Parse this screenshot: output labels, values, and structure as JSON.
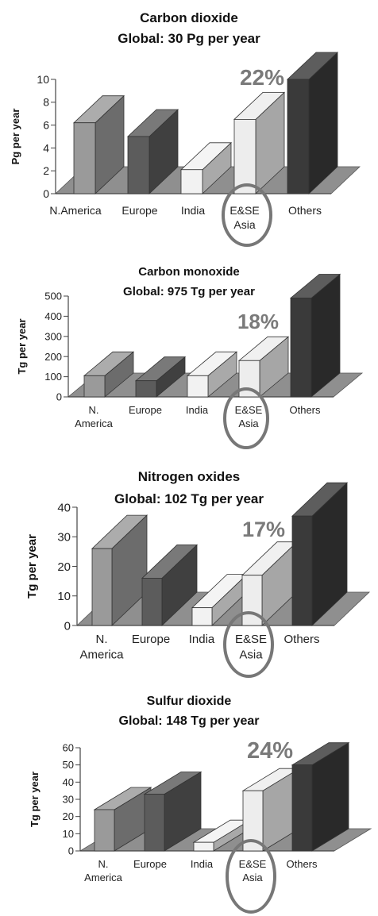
{
  "chart_data": [
    {
      "type": "bar",
      "title": "Carbon dioxide",
      "subtitle": "Global: 30 Pg per year",
      "ylabel": "Pg per year",
      "xlabel": "",
      "ylim": [
        0,
        10
      ],
      "yticks": [
        "0",
        "2",
        "4",
        "6",
        "8",
        "10"
      ],
      "categories": [
        "N.America",
        "Europe",
        "India",
        "E&SE Asia",
        "Others"
      ],
      "category_lines": [
        [
          "N.America"
        ],
        [
          "Europe"
        ],
        [
          "India"
        ],
        [
          "E&SE",
          "Asia"
        ],
        [
          "Others"
        ]
      ],
      "values": [
        6.2,
        5.0,
        2.1,
        6.5,
        10.0
      ],
      "highlight": "22%",
      "colors": [
        "#9a9a9a",
        "#5c5c5c",
        "#f2f2f2",
        "#ededed",
        "#3a3a3a"
      ]
    },
    {
      "type": "bar",
      "title": "Carbon monoxide",
      "subtitle": "Global: 975 Tg per year",
      "ylabel": "Tg per year",
      "xlabel": "",
      "ylim": [
        0,
        500
      ],
      "yticks": [
        "0",
        "100",
        "200",
        "300",
        "400",
        "500"
      ],
      "categories": [
        "N. America",
        "Europe",
        "India",
        "E&SE Asia",
        "Others"
      ],
      "category_lines": [
        [
          "N.",
          "America"
        ],
        [
          "Europe"
        ],
        [
          "India"
        ],
        [
          "E&SE",
          "Asia"
        ],
        [
          "Others"
        ]
      ],
      "values": [
        105,
        80,
        105,
        180,
        490
      ],
      "highlight": "18%",
      "colors": [
        "#9a9a9a",
        "#5c5c5c",
        "#f2f2f2",
        "#ededed",
        "#3a3a3a"
      ]
    },
    {
      "type": "bar",
      "title": "Nitrogen oxides",
      "subtitle": "Global: 102 Tg per year",
      "ylabel": "Tg per year",
      "xlabel": "",
      "ylim": [
        0,
        40
      ],
      "yticks": [
        "0",
        "10",
        "20",
        "30",
        "40"
      ],
      "categories": [
        "N. America",
        "Europe",
        "India",
        "E&SE Asia",
        "Others"
      ],
      "category_lines": [
        [
          "N.",
          "America"
        ],
        [
          "Europe"
        ],
        [
          "India"
        ],
        [
          "E&SE",
          "Asia"
        ],
        [
          "Others"
        ]
      ],
      "values": [
        26,
        16,
        6,
        17,
        37
      ],
      "highlight": "17%",
      "colors": [
        "#9a9a9a",
        "#5c5c5c",
        "#f2f2f2",
        "#ededed",
        "#3a3a3a"
      ]
    },
    {
      "type": "bar",
      "title": "Sulfur dioxide",
      "subtitle": "Global: 148 Tg per year",
      "ylabel": "Tg per year",
      "xlabel": "",
      "ylim": [
        0,
        60
      ],
      "yticks": [
        "0",
        "10",
        "20",
        "30",
        "40",
        "50",
        "60"
      ],
      "categories": [
        "N. America",
        "Europe",
        "India",
        "E&SE Asia",
        "Others"
      ],
      "category_lines": [
        [
          "N.",
          "America"
        ],
        [
          "Europe"
        ],
        [
          "India"
        ],
        [
          "E&SE",
          "Asia"
        ],
        [
          "Others"
        ]
      ],
      "values": [
        24,
        33,
        5,
        35,
        50
      ],
      "highlight": "24%",
      "colors": [
        "#9a9a9a",
        "#5c5c5c",
        "#f2f2f2",
        "#ededed",
        "#3a3a3a"
      ]
    }
  ]
}
